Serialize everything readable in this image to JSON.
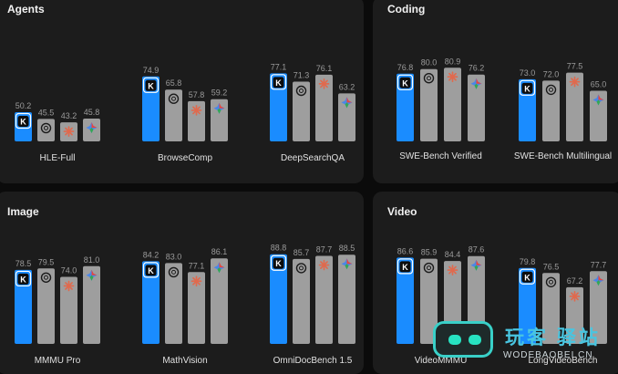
{
  "colors": {
    "kimi": "#1a8cff",
    "other": "#9e9e9e",
    "value_text": "#9a9a9a",
    "label_text": "#e0e0e0"
  },
  "legend_icons": [
    "kimi-k-icon",
    "openai-knot-icon",
    "claude-spark-icon",
    "gemini-star-icon"
  ],
  "watermark": {
    "text": "玩客 驿站",
    "url": "WODEBAOBEI.CN"
  },
  "chart_data": [
    {
      "type": "bar",
      "title": "Agents",
      "ylim": [
        0,
        100
      ],
      "groups": [
        {
          "label": "HLE-Full",
          "values": [
            50.2,
            45.5,
            43.2,
            45.8
          ]
        },
        {
          "label": "BrowseComp",
          "values": [
            74.9,
            65.8,
            57.8,
            59.2
          ]
        },
        {
          "label": "DeepSearchQA",
          "values": [
            77.1,
            71.3,
            76.1,
            63.2
          ]
        }
      ]
    },
    {
      "type": "bar",
      "title": "Coding",
      "ylim": [
        0,
        100
      ],
      "groups": [
        {
          "label": "SWE-Bench Verified",
          "values": [
            76.8,
            80.0,
            80.9,
            76.2
          ]
        },
        {
          "label": "SWE-Bench Multilingual",
          "values": [
            73.0,
            72.0,
            77.5,
            65.0
          ]
        }
      ]
    },
    {
      "type": "bar",
      "title": "Image",
      "ylim": [
        0,
        100
      ],
      "groups": [
        {
          "label": "MMMU Pro",
          "values": [
            78.5,
            79.5,
            74.0,
            81.0
          ]
        },
        {
          "label": "MathVision",
          "values": [
            84.2,
            83.0,
            77.1,
            86.1
          ]
        },
        {
          "label": "OmniDocBench 1.5",
          "values": [
            88.8,
            85.7,
            87.7,
            88.5
          ]
        }
      ]
    },
    {
      "type": "bar",
      "title": "Video",
      "ylim": [
        0,
        100
      ],
      "groups": [
        {
          "label": "VideoMMMU",
          "values": [
            86.6,
            85.9,
            84.4,
            87.6
          ]
        },
        {
          "label": "LongVideoBench",
          "values": [
            79.8,
            76.5,
            67.2,
            77.7
          ]
        }
      ]
    }
  ]
}
